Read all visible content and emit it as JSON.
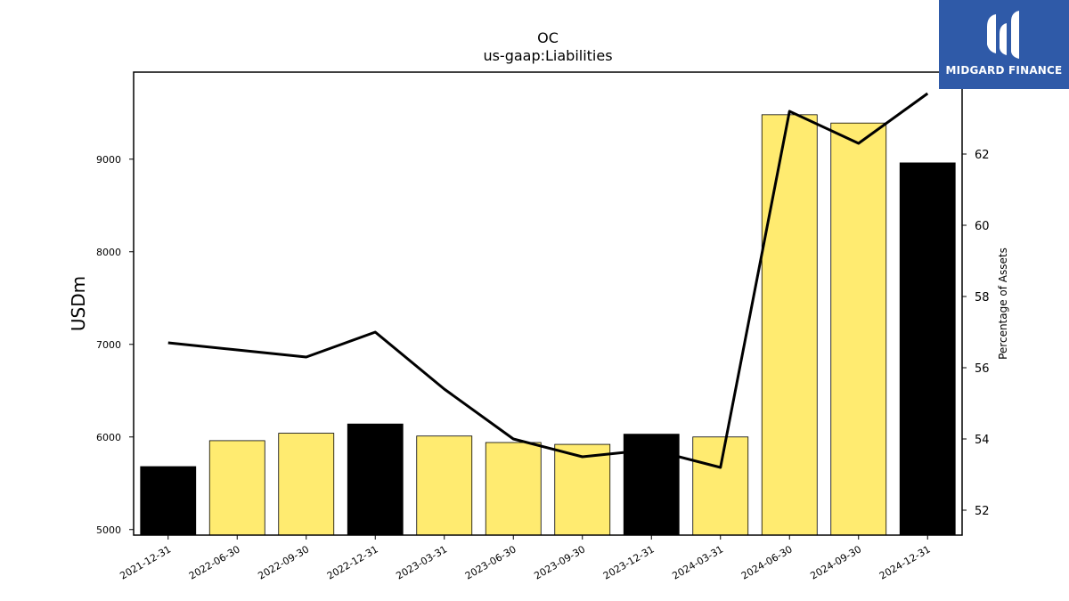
{
  "logo": {
    "text": "MIDGARD FINANCE",
    "icon": "midgard-m-logo-icon",
    "bg_color": "#2f5aa8"
  },
  "chart_data": {
    "type": "bar",
    "title": "OC",
    "subtitle": "us-gaap:Liabilities",
    "ylabel": "USDm",
    "y2label": "Percentage of Assets",
    "categories": [
      "2021-12-31",
      "2022-06-30",
      "2022-09-30",
      "2022-12-31",
      "2023-03-31",
      "2023-06-30",
      "2023-09-30",
      "2023-12-31",
      "2024-03-31",
      "2024-06-30",
      "2024-09-30",
      "2024-12-31"
    ],
    "series": [
      {
        "kind": "bar",
        "axis": "left",
        "values": [
          5680,
          5960,
          6040,
          6140,
          6010,
          5940,
          5920,
          6030,
          6000,
          9480,
          9390,
          8960
        ],
        "colors": [
          "#000000",
          "#ffeb70",
          "#ffeb70",
          "#000000",
          "#ffeb70",
          "#ffeb70",
          "#ffeb70",
          "#000000",
          "#ffeb70",
          "#ffeb70",
          "#ffeb70",
          "#000000"
        ]
      },
      {
        "kind": "line",
        "axis": "right",
        "color": "#000000",
        "values": [
          56.7,
          56.5,
          56.3,
          57.0,
          55.4,
          54.0,
          53.5,
          53.7,
          53.2,
          63.2,
          62.3,
          63.7
        ]
      }
    ],
    "yticks": [
      5000,
      6000,
      7000,
      8000,
      9000
    ],
    "y2ticks": [
      52,
      54,
      56,
      58,
      60,
      62
    ],
    "ylim": [
      4940,
      9940
    ],
    "y2lim": [
      51.3,
      64.3
    ],
    "grid": false
  }
}
